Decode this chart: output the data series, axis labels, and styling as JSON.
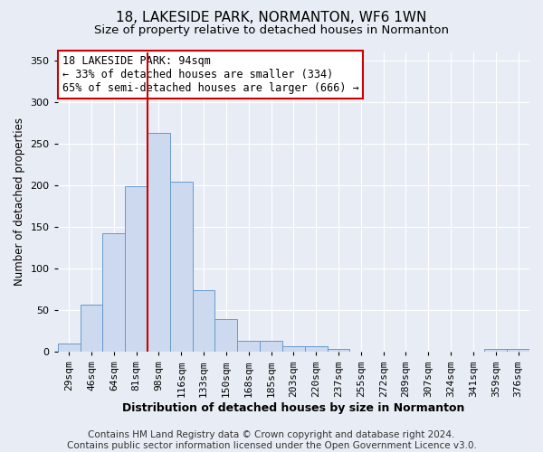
{
  "title": "18, LAKESIDE PARK, NORMANTON, WF6 1WN",
  "subtitle": "Size of property relative to detached houses in Normanton",
  "xlabel": "Distribution of detached houses by size in Normanton",
  "ylabel": "Number of detached properties",
  "categories": [
    "29sqm",
    "46sqm",
    "64sqm",
    "81sqm",
    "98sqm",
    "116sqm",
    "133sqm",
    "150sqm",
    "168sqm",
    "185sqm",
    "203sqm",
    "220sqm",
    "237sqm",
    "255sqm",
    "272sqm",
    "289sqm",
    "307sqm",
    "324sqm",
    "341sqm",
    "359sqm",
    "376sqm"
  ],
  "values": [
    10,
    57,
    143,
    199,
    263,
    204,
    74,
    40,
    13,
    14,
    7,
    7,
    4,
    0,
    0,
    0,
    0,
    0,
    0,
    4,
    4
  ],
  "bar_color": "#ccd9ee",
  "bar_edge_color": "#6699cc",
  "vline_x_index": 4,
  "vline_color": "#cc0000",
  "annotation_text": "18 LAKESIDE PARK: 94sqm\n← 33% of detached houses are smaller (334)\n65% of semi-detached houses are larger (666) →",
  "annotation_box_facecolor": "#ffffff",
  "annotation_box_edgecolor": "#cc0000",
  "ylim": [
    0,
    360
  ],
  "yticks": [
    0,
    50,
    100,
    150,
    200,
    250,
    300,
    350
  ],
  "footer": "Contains HM Land Registry data © Crown copyright and database right 2024.\nContains public sector information licensed under the Open Government Licence v3.0.",
  "background_color": "#e8edf5",
  "plot_background_color": "#e8edf5",
  "title_fontsize": 11,
  "subtitle_fontsize": 9.5,
  "xlabel_fontsize": 9,
  "ylabel_fontsize": 8.5,
  "tick_fontsize": 8,
  "annotation_fontsize": 8.5,
  "footer_fontsize": 7.5
}
